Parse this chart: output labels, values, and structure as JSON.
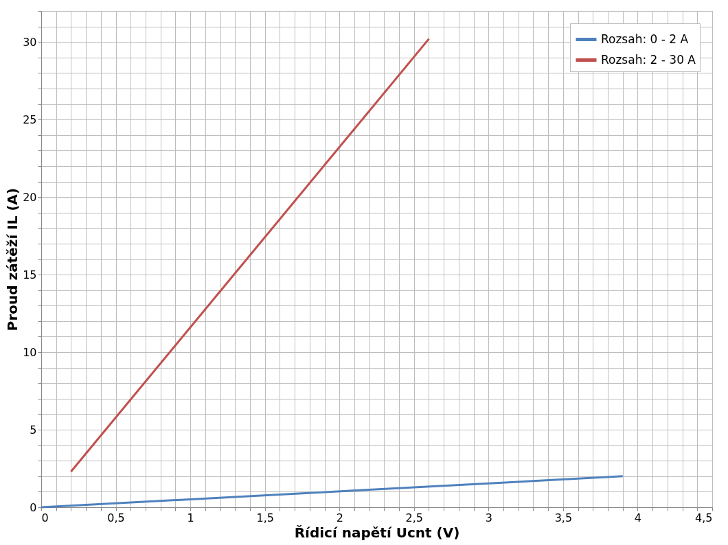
{
  "chart_data": {
    "type": "line",
    "xlabel": "Řídicí napětí Ucnt (V)",
    "ylabel": "Proud zátěží IL (A)",
    "series": [
      {
        "name": "Rozsah: 0 - 2 A",
        "color": "#4f81bd",
        "x": [
          0,
          3.9
        ],
        "values": [
          0,
          2.0
        ]
      },
      {
        "name": "Rozsah: 2 - 30 A",
        "color": "#c0504d",
        "x": [
          0.2,
          2.6
        ],
        "values": [
          2.3,
          30.2
        ]
      }
    ],
    "xlim": [
      0,
      4.5
    ],
    "xticks": [
      0,
      {
        "value": 0.1,
        "label": null
      },
      {
        "value": 0.2,
        "label": null
      },
      {
        "value": 0.3,
        "label": null
      },
      {
        "value": 0.4,
        "label": null
      },
      {
        "value": 0.5,
        "label": "0,5"
      },
      {
        "value": 0.6,
        "label": null
      },
      {
        "value": 0.7,
        "label": null
      },
      {
        "value": 0.8,
        "label": null
      },
      {
        "value": 0.9,
        "label": null
      },
      1,
      {
        "value": 1.1,
        "label": null
      },
      {
        "value": 1.2,
        "label": null
      },
      {
        "value": 1.3,
        "label": null
      },
      {
        "value": 1.4,
        "label": null
      },
      {
        "value": 1.5,
        "label": "1,5"
      },
      {
        "value": 1.6,
        "label": null
      },
      {
        "value": 1.7,
        "label": null
      },
      {
        "value": 1.8,
        "label": null
      },
      {
        "value": 1.9,
        "label": null
      },
      2,
      {
        "value": 2.1,
        "label": null
      },
      {
        "value": 2.2,
        "label": null
      },
      {
        "value": 2.3,
        "label": null
      },
      {
        "value": 2.4,
        "label": null
      },
      {
        "value": 2.5,
        "label": "2,5"
      },
      {
        "value": 2.6,
        "label": null
      },
      {
        "value": 2.7,
        "label": null
      },
      {
        "value": 2.8,
        "label": null
      },
      {
        "value": 2.9,
        "label": null
      },
      3,
      {
        "value": 3.1,
        "label": null
      },
      {
        "value": 3.2,
        "label": null
      },
      {
        "value": 3.3,
        "label": null
      },
      {
        "value": 3.4,
        "label": null
      },
      {
        "value": 3.5,
        "label": "3,5"
      },
      {
        "value": 3.6,
        "label": null
      },
      {
        "value": 3.7,
        "label": null
      },
      {
        "value": 3.8,
        "label": null
      },
      {
        "value": 3.9,
        "label": null
      },
      4,
      {
        "value": 4.1,
        "label": null
      },
      {
        "value": 4.2,
        "label": null
      },
      {
        "value": 4.3,
        "label": null
      },
      {
        "value": 4.4,
        "label": null
      },
      {
        "value": 4.5,
        "label": "4,5"
      }
    ],
    "ylim": [
      0,
      32
    ],
    "yticks": [
      0,
      {
        "value": 1,
        "label": null
      },
      {
        "value": 2,
        "label": null
      },
      {
        "value": 3,
        "label": null
      },
      {
        "value": 4,
        "label": null
      },
      5,
      {
        "value": 6,
        "label": null
      },
      {
        "value": 7,
        "label": null
      },
      {
        "value": 8,
        "label": null
      },
      {
        "value": 9,
        "label": null
      },
      10,
      {
        "value": 11,
        "label": null
      },
      {
        "value": 12,
        "label": null
      },
      {
        "value": 13,
        "label": null
      },
      {
        "value": 14,
        "label": null
      },
      15,
      {
        "value": 16,
        "label": null
      },
      {
        "value": 17,
        "label": null
      },
      {
        "value": 18,
        "label": null
      },
      {
        "value": 19,
        "label": null
      },
      20,
      {
        "value": 21,
        "label": null
      },
      {
        "value": 22,
        "label": null
      },
      {
        "value": 23,
        "label": null
      },
      {
        "value": 24,
        "label": null
      },
      25,
      {
        "value": 26,
        "label": null
      },
      {
        "value": 27,
        "label": null
      },
      {
        "value": 28,
        "label": null
      },
      {
        "value": 29,
        "label": null
      },
      30,
      {
        "value": 31,
        "label": null
      },
      {
        "value": 32,
        "label": null
      }
    ],
    "grid": true,
    "legend": "top right",
    "marker": "none",
    "line_style": "solid"
  }
}
